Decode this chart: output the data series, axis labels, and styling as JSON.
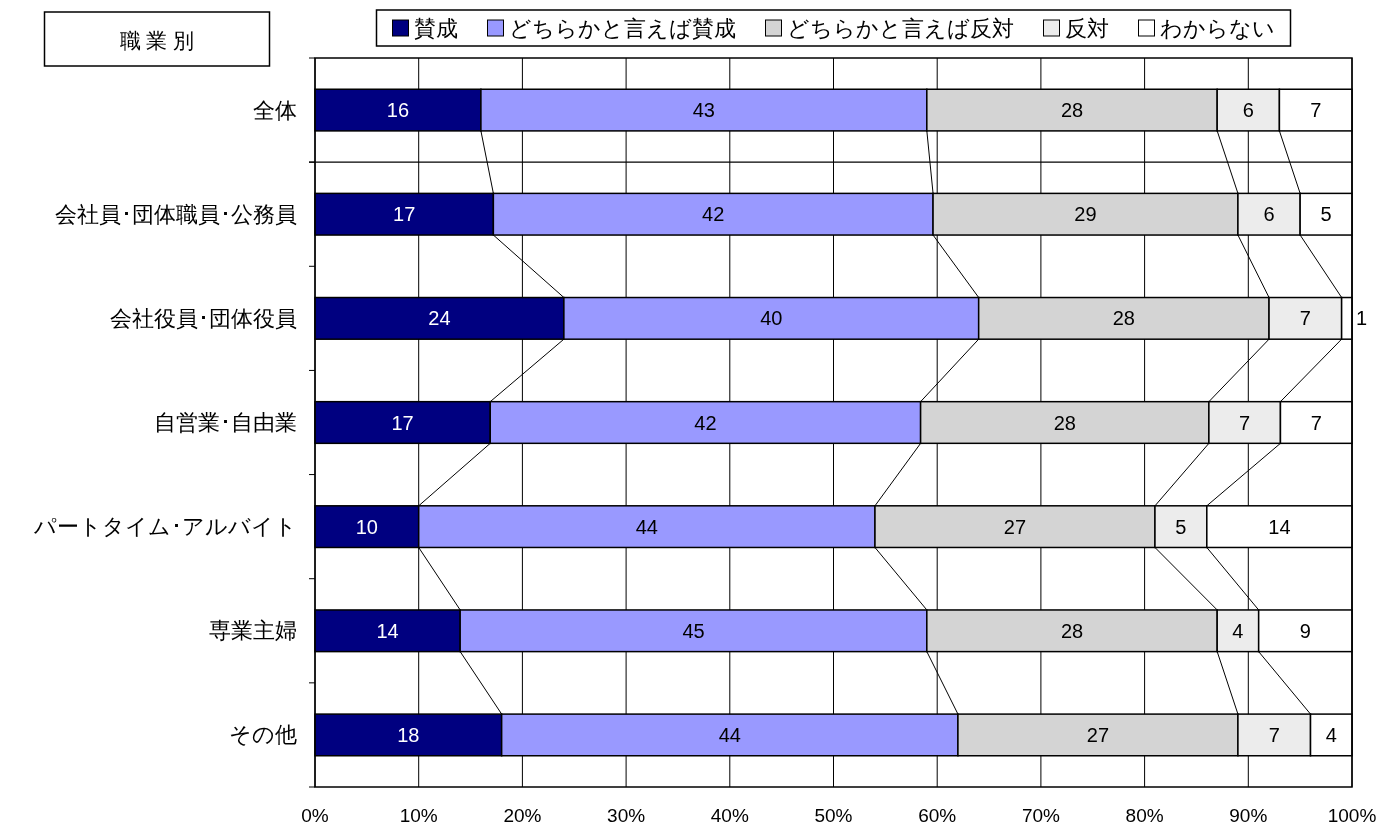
{
  "chart_data": {
    "type": "bar",
    "orientation": "horizontal",
    "stacked": true,
    "ylabel": "職 業 別",
    "categories": [
      "全体",
      "会社員･団体職員･公務員",
      "会社役員･団体役員",
      "自営業･自由業",
      "パートタイム･アルバイト",
      "専業主婦",
      "その他"
    ],
    "series": [
      {
        "name": "賛成",
        "color": "#000080",
        "values": [
          16,
          17.2,
          24,
          16.9,
          10,
          14,
          18
        ],
        "value_labels": [
          "16",
          "17",
          "24",
          "17",
          "10",
          "14",
          "18"
        ]
      },
      {
        "name": "どちらかと言えば賛成",
        "color": "#9999ff",
        "values": [
          43,
          42.4,
          40,
          41.5,
          44,
          45,
          44
        ],
        "value_labels": [
          "43",
          "42",
          "40",
          "42",
          "44",
          "45",
          "44"
        ]
      },
      {
        "name": "どちらかと言えば反対",
        "color": "#d4d4d4",
        "values": [
          28,
          29.4,
          28,
          27.8,
          27,
          28,
          27
        ],
        "value_labels": [
          "28",
          "29",
          "28",
          "28",
          "27",
          "28",
          "27"
        ]
      },
      {
        "name": "反対",
        "color": "#ececec",
        "values": [
          6,
          6.0,
          7,
          6.9,
          5,
          4,
          7
        ],
        "value_labels": [
          "6",
          "6",
          "7",
          "7",
          "5",
          "4",
          "7"
        ]
      },
      {
        "name": "わからない",
        "color": "#ffffff",
        "values": [
          7,
          5.0,
          1,
          6.9,
          14,
          9,
          4
        ],
        "value_labels": [
          "7",
          "5",
          "1",
          "7",
          "14",
          "9",
          "4"
        ]
      }
    ],
    "xlim": [
      0,
      100
    ],
    "xticks": [
      {
        "value": 0,
        "label": "0%"
      },
      {
        "value": 10,
        "label": "10%"
      },
      {
        "value": 20,
        "label": "20%"
      },
      {
        "value": 30,
        "label": "30%"
      },
      {
        "value": 40,
        "label": "40%"
      },
      {
        "value": 50,
        "label": "50%"
      },
      {
        "value": 60,
        "label": "60%"
      },
      {
        "value": 70,
        "label": "70%"
      },
      {
        "value": 80,
        "label": "80%"
      },
      {
        "value": 90,
        "label": "90%"
      },
      {
        "value": 100,
        "label": "100%"
      }
    ],
    "grid": "x",
    "legend": "top"
  }
}
